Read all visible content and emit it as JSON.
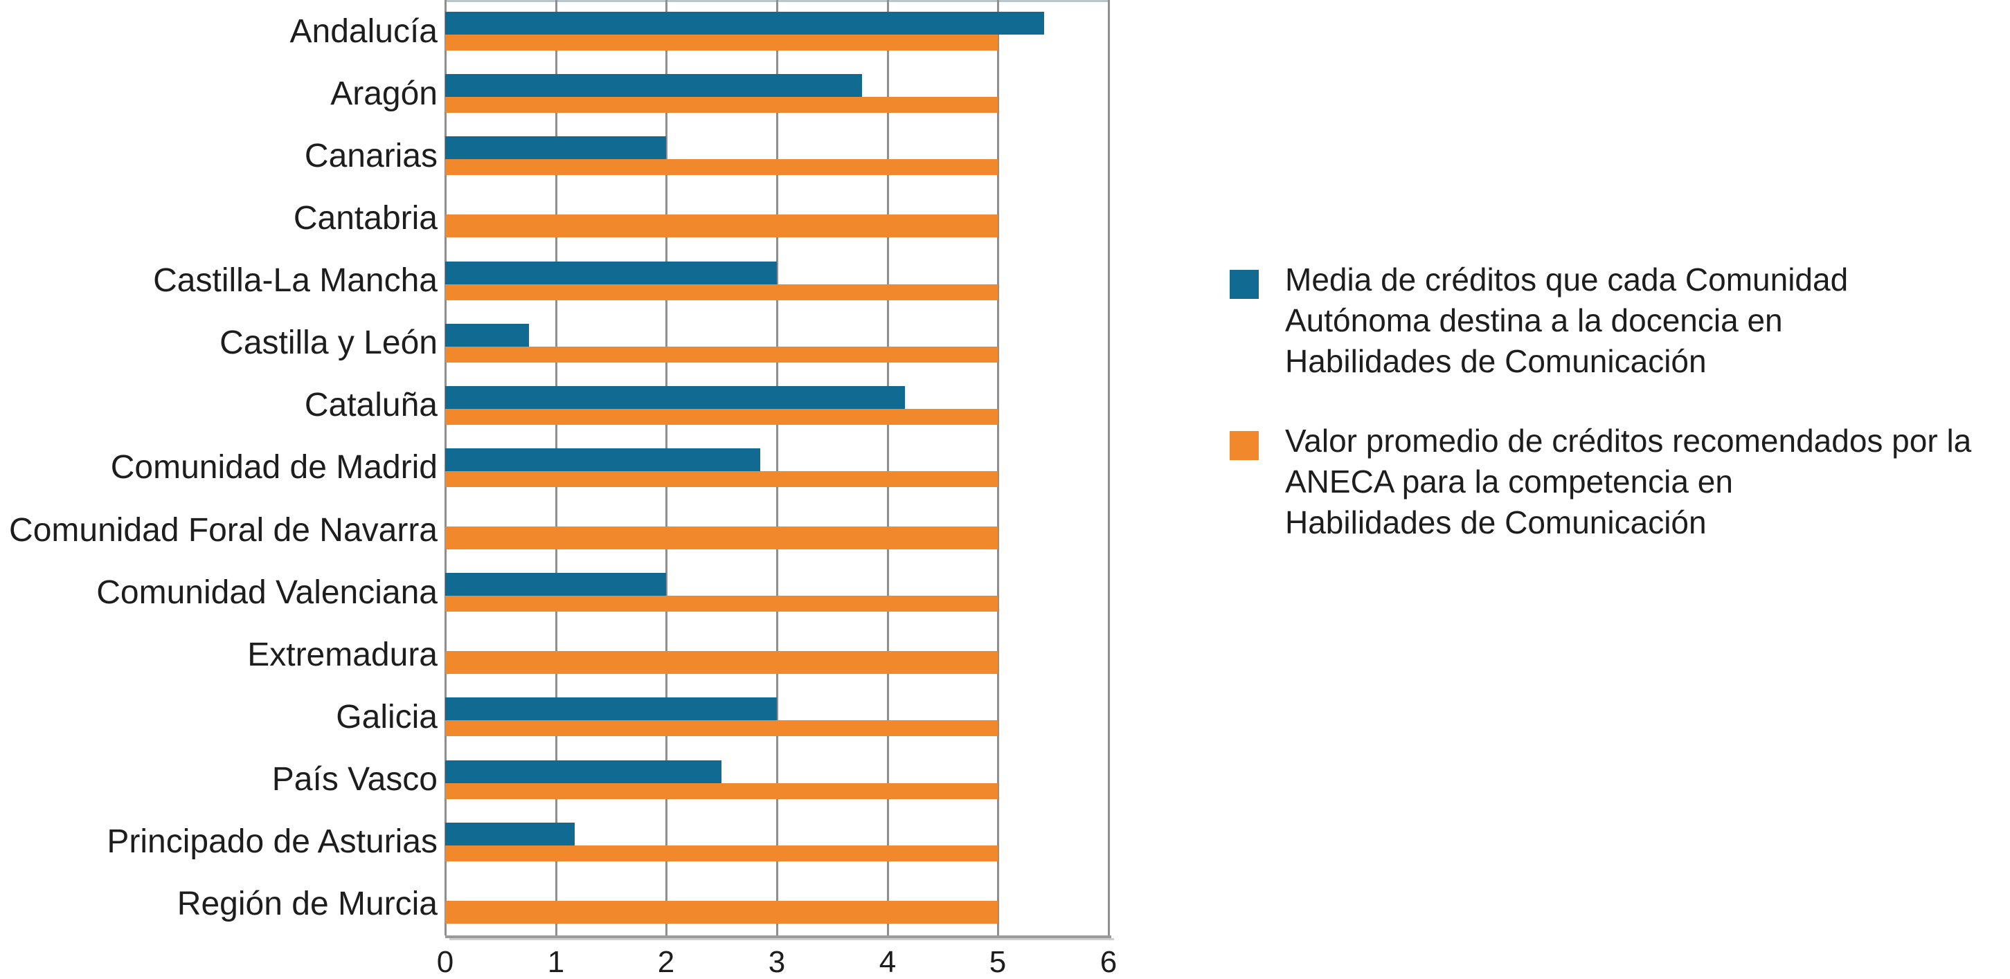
{
  "figure": {
    "background": "#ffffff",
    "text_color": "#1d1d1d",
    "gridline_color": "#8f8f8f",
    "axis_line_color": "#9a9a9a"
  },
  "chart_data": {
    "type": "bar",
    "orientation": "horizontal",
    "title": "",
    "xlabel": "",
    "ylabel": "",
    "xlim": [
      0,
      6
    ],
    "xticks": [
      "0",
      "1",
      "2",
      "3",
      "4",
      "5",
      "6"
    ],
    "grid": "vertical gridlines at every integer",
    "legend_position": "right of plot",
    "categories": [
      "Andalucía",
      "Aragón",
      "Canarias",
      "Cantabria",
      "Castilla-La Mancha",
      "Castilla y León",
      "Cataluña",
      "Comunidad de Madrid",
      "Comunidad Foral de Navarra",
      "Comunidad Valenciana",
      "Extremadura",
      "Galicia",
      "País Vasco",
      "Principado de Asturias",
      "Región de Murcia"
    ],
    "series": [
      {
        "name": "Media de créditos que cada Comunidad Autónoma destina a la docencia en Habilidades de Comunicación",
        "color": "#116A92",
        "values": [
          5.42,
          3.77,
          2,
          0,
          3,
          0.76,
          4.16,
          2.85,
          0,
          2,
          0,
          3,
          2.5,
          1.17,
          0
        ]
      },
      {
        "name": "Valor promedio de créditos recomendados por la ANECA para la competencia en Habilidades de Comunicación",
        "color": "#F1882C",
        "values": [
          5,
          5,
          5,
          5,
          5,
          5,
          5,
          5,
          5,
          5,
          5,
          5,
          5,
          5,
          5
        ]
      }
    ],
    "legend": [
      {
        "color": "#116A92",
        "lines": [
          "Media de créditos que cada Comunidad",
          "Autónoma destina a la docencia en",
          "Habilidades de Comunicación"
        ]
      },
      {
        "color": "#F1882C",
        "lines": [
          "Valor promedio de créditos recomendados por la",
          "ANECA para la competencia en",
          "Habilidades de Comunicación"
        ]
      }
    ]
  }
}
